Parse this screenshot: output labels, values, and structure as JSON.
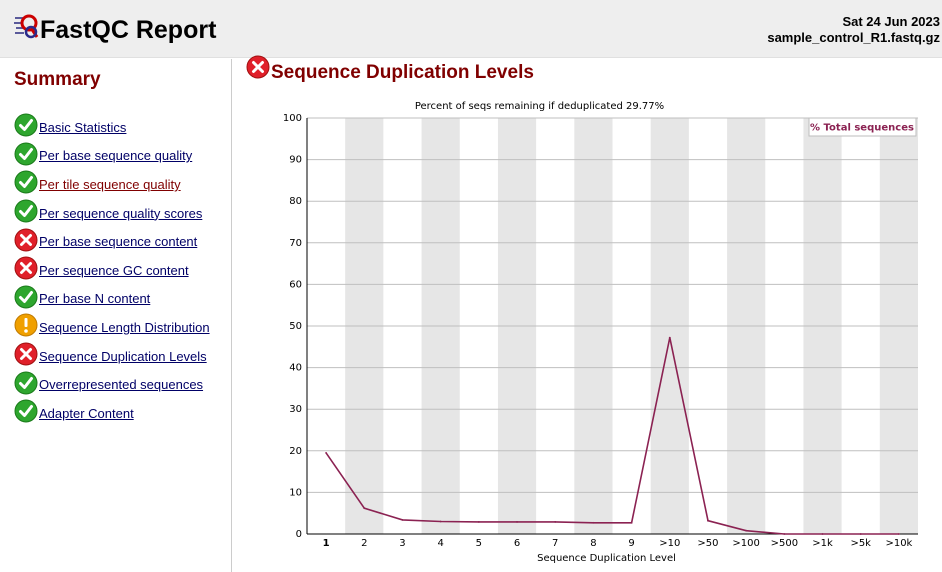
{
  "header": {
    "title": "FastQC Report",
    "date": "Sat 24 Jun 2023",
    "filename": "sample_control_R1.fastq.gz"
  },
  "sidebar": {
    "title": "Summary",
    "modules": [
      {
        "label": "Basic Statistics",
        "status": "pass",
        "icon": "pass-icon"
      },
      {
        "label": "Per base sequence quality",
        "status": "pass",
        "icon": "pass-icon"
      },
      {
        "label": "Per tile sequence quality",
        "status": "pass",
        "icon": "pass-icon"
      },
      {
        "label": "Per sequence quality scores",
        "status": "pass",
        "icon": "pass-icon"
      },
      {
        "label": "Per base sequence content",
        "status": "fail",
        "icon": "fail-icon"
      },
      {
        "label": "Per sequence GC content",
        "status": "fail",
        "icon": "fail-icon"
      },
      {
        "label": "Per base N content",
        "status": "pass",
        "icon": "pass-icon"
      },
      {
        "label": "Sequence Length Distribution",
        "status": "warn",
        "icon": "warn-icon"
      },
      {
        "label": "Sequence Duplication Levels",
        "status": "fail",
        "icon": "fail-icon"
      },
      {
        "label": "Overrepresented sequences",
        "status": "pass",
        "icon": "pass-icon"
      },
      {
        "label": "Adapter Content",
        "status": "pass",
        "icon": "pass-icon"
      }
    ]
  },
  "main": {
    "section_title": "Sequence Duplication Levels",
    "section_status": "fail"
  },
  "colors": {
    "accent": "#800000",
    "link": "#000066",
    "pass": "#2ea62e",
    "fail": "#e0202a",
    "warn": "#f0a000",
    "series": "#8b2252"
  },
  "chart_data": {
    "type": "line",
    "title": "Percent of seqs remaining if deduplicated 29.77%",
    "xlabel": "Sequence Duplication Level",
    "ylabel": "",
    "categories": [
      "1",
      "2",
      "3",
      "4",
      "5",
      "6",
      "7",
      "8",
      "9",
      ">10",
      ">50",
      ">100",
      ">500",
      ">1k",
      ">5k",
      ">10k"
    ],
    "series": [
      {
        "name": "% Total sequences",
        "values": [
          19.5,
          6.2,
          3.4,
          3.0,
          2.9,
          2.9,
          2.9,
          2.7,
          2.7,
          47.2,
          3.2,
          0.8,
          0.0,
          0.0,
          0.0,
          0.0
        ]
      }
    ],
    "ylim": [
      0,
      100
    ],
    "yticks": [
      0,
      10,
      20,
      30,
      40,
      50,
      60,
      70,
      80,
      90,
      100
    ],
    "grid": true,
    "legend": "top-right"
  }
}
